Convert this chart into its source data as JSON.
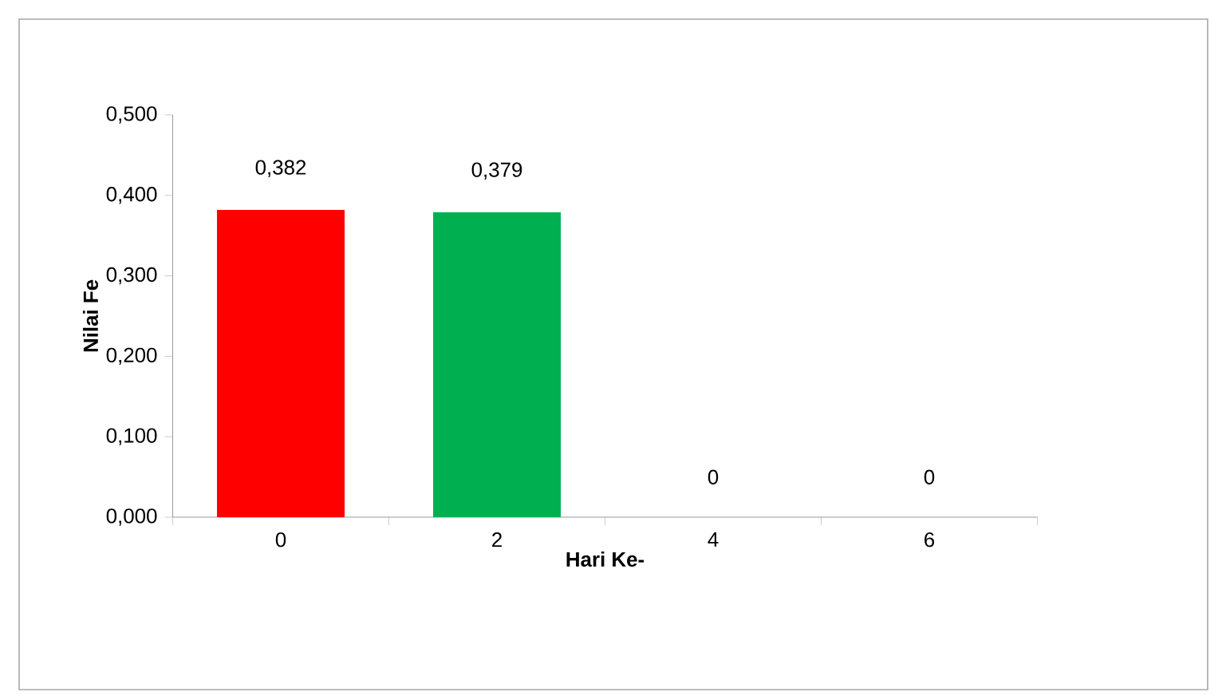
{
  "chart_data": {
    "type": "bar",
    "xlabel": "Hari Ke-",
    "ylabel": "Nilai Fe",
    "categories": [
      "0",
      "2",
      "4",
      "6"
    ],
    "values": [
      0.382,
      0.379,
      0,
      0
    ],
    "colors": [
      "#ff0000",
      "#00b050",
      "#4f81bd",
      "#4f81bd"
    ],
    "value_labels": [
      "0,382",
      "0,379",
      "0",
      "0"
    ],
    "ylim": [
      0,
      0.5
    ],
    "yticks": [
      {
        "value": 0,
        "label": "0,000"
      },
      {
        "value": 0.1,
        "label": "0,100"
      },
      {
        "value": 0.2,
        "label": "0,200"
      },
      {
        "value": 0.3,
        "label": "0,300"
      },
      {
        "value": 0.4,
        "label": "0,400"
      },
      {
        "value": 0.5,
        "label": "0,500"
      }
    ]
  }
}
